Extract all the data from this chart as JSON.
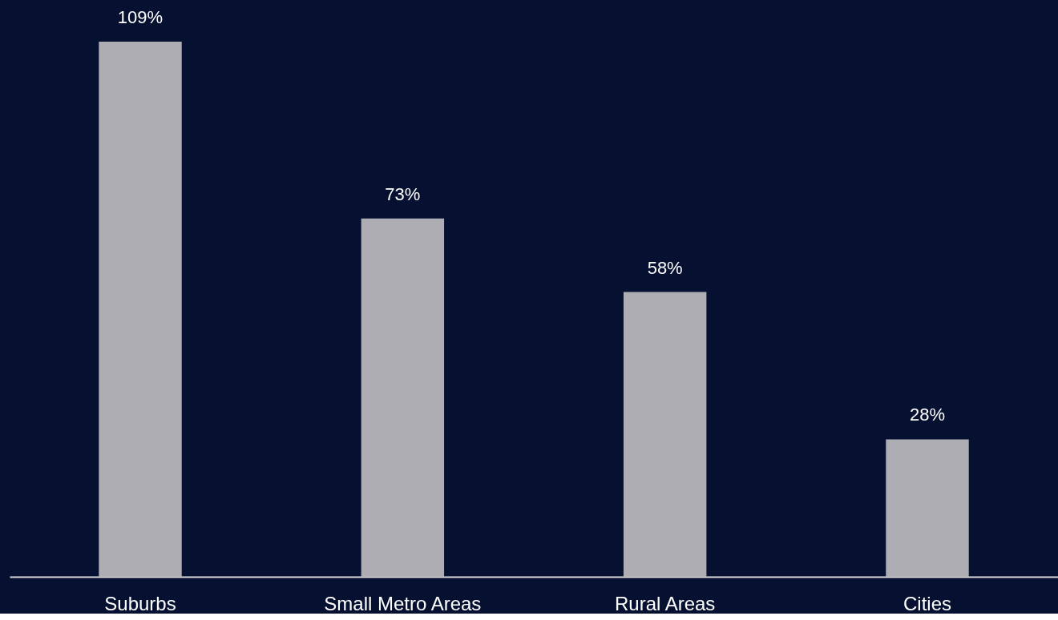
{
  "chart_data": {
    "type": "bar",
    "categories": [
      "Suburbs",
      "Small Metro Areas",
      "Rural Areas",
      "Cities"
    ],
    "values": [
      109,
      73,
      58,
      28
    ],
    "value_labels": [
      "109%",
      "73%",
      "58%",
      "28%"
    ],
    "color": "#aeadb4",
    "grid": false
  }
}
